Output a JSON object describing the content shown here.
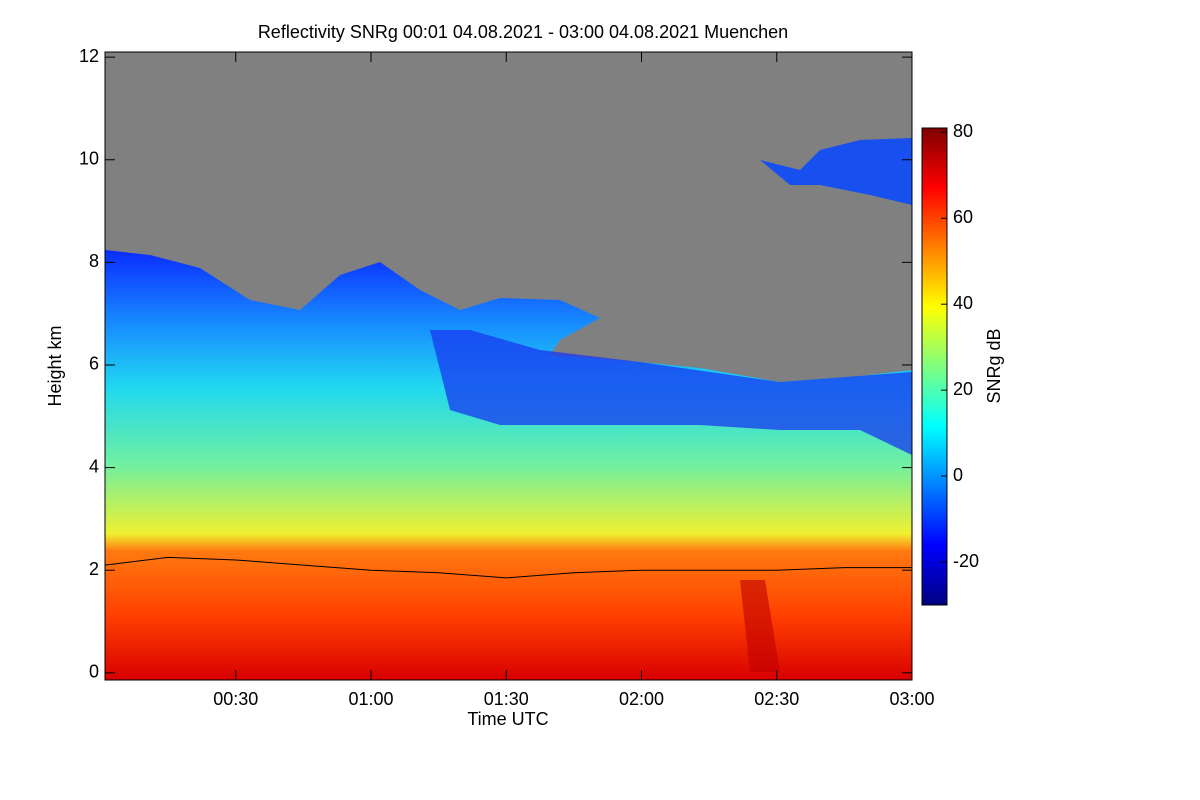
{
  "chart_data": {
    "type": "heatmap",
    "title": "Reflectivity SNRg   00:01 04.08.2021 - 03:00 04.08.2021 Muenchen",
    "x_label": "Time UTC",
    "y_label": "Height km",
    "xlim": [
      0.0167,
      3.0
    ],
    "xticks": [
      {
        "value": 0.5,
        "label": "00:30"
      },
      {
        "value": 1.0,
        "label": "01:00"
      },
      {
        "value": 1.5,
        "label": "01:30"
      },
      {
        "value": 2.0,
        "label": "02:00"
      },
      {
        "value": 2.5,
        "label": "02:30"
      },
      {
        "value": 3.0,
        "label": "03:00"
      }
    ],
    "ylim": [
      -0.14,
      12.1
    ],
    "yticks": [
      0,
      2,
      4,
      6,
      8,
      10,
      12
    ],
    "colorbar_label": "SNRg dB",
    "zlim": [
      -30,
      81
    ],
    "zticks": [
      -20,
      0,
      20,
      40,
      60,
      80
    ],
    "series": [
      {
        "color": "#000000",
        "x": [
          0.0167,
          0.25,
          0.5,
          0.75,
          1.0,
          1.25,
          1.5,
          1.75,
          2.0,
          2.25,
          2.5,
          2.75,
          3.0
        ],
        "values": [
          2.1,
          2.25,
          2.2,
          2.1,
          2.0,
          1.95,
          1.85,
          1.95,
          2.0,
          2.0,
          2.0,
          2.05,
          2.05
        ]
      }
    ]
  }
}
